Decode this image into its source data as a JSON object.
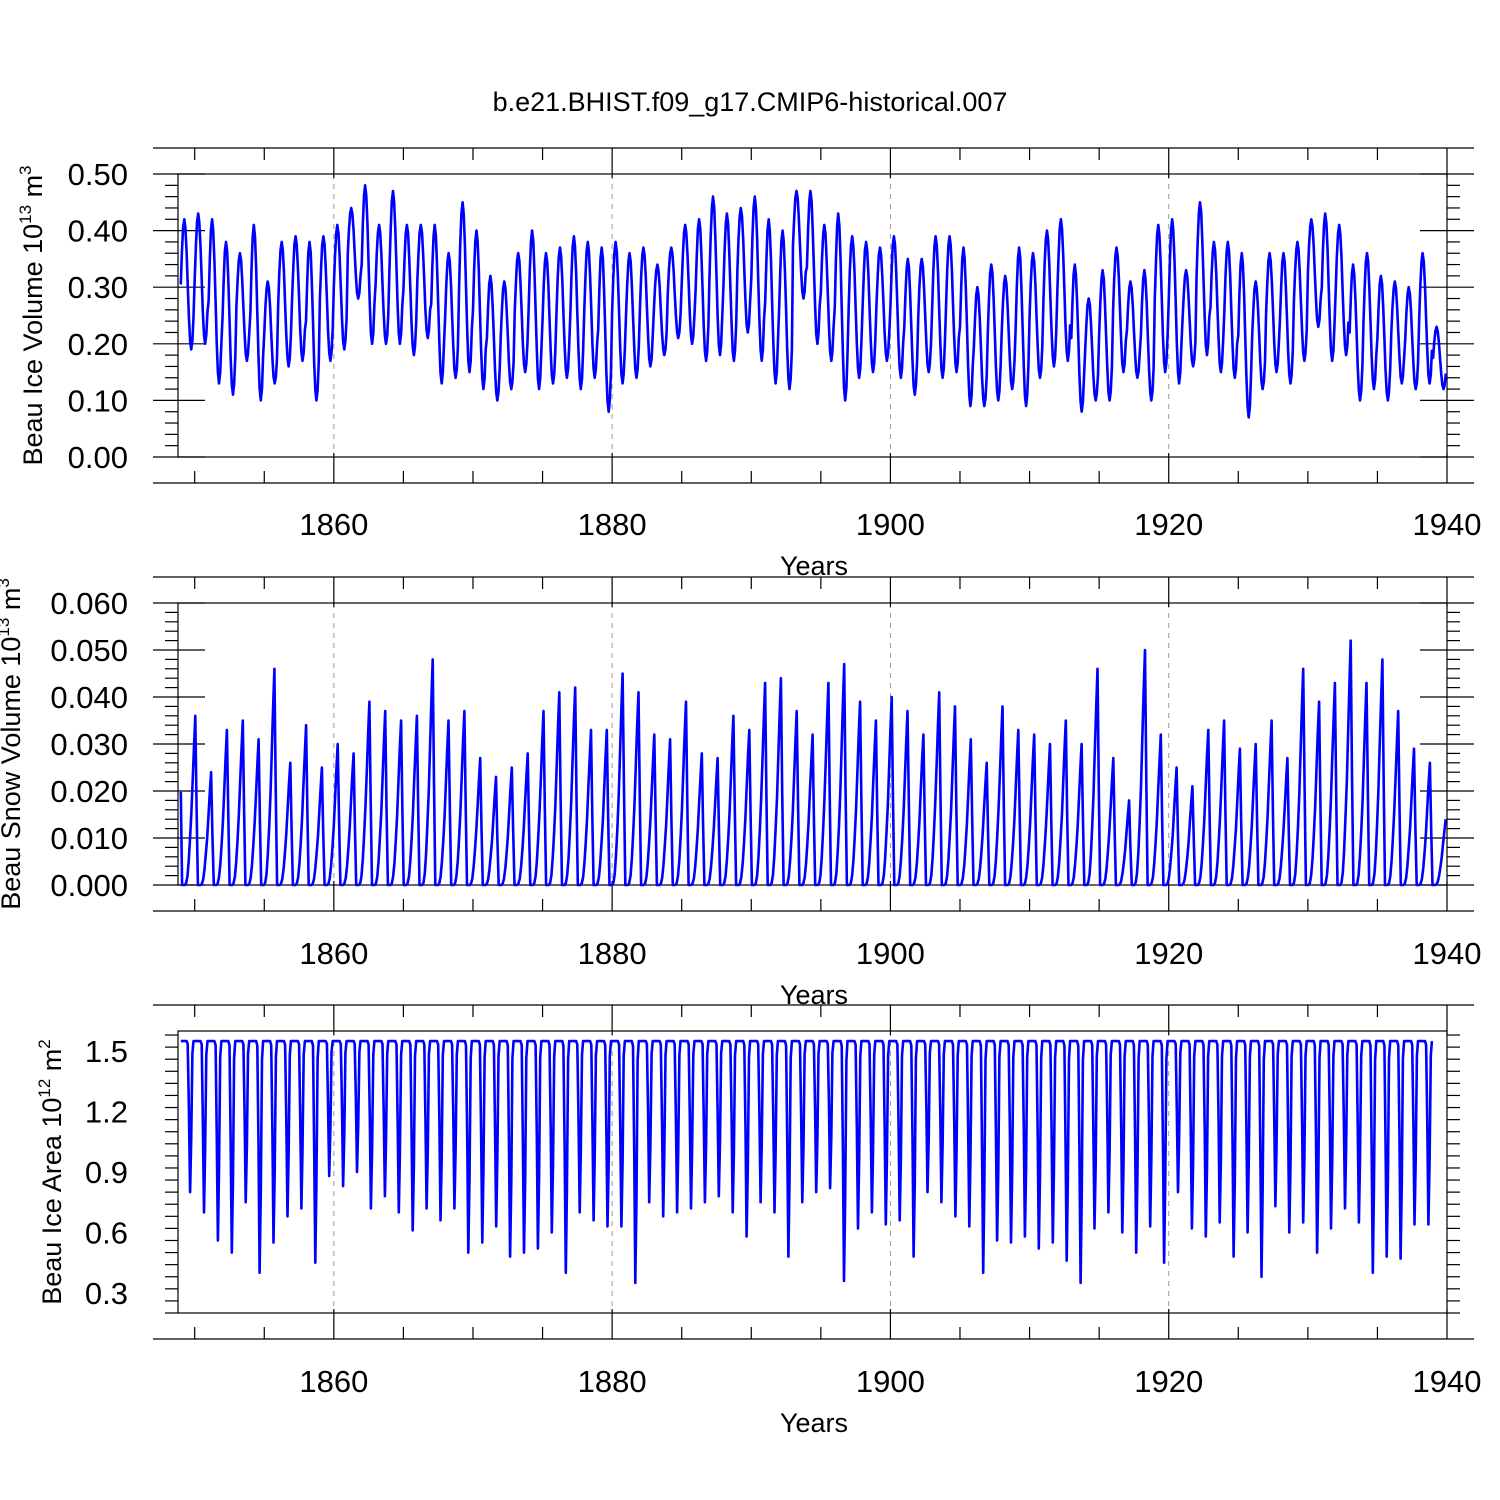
{
  "title": "b.e21.BHIST.f09_g17.CMIP6-historical.007",
  "colors": {
    "series": "#0000ff",
    "axis": "#000000",
    "grid": "#9a9a9a"
  },
  "chart_data": [
    {
      "id": "ice-volume",
      "type": "line",
      "ylabel": "Beau Ice Volume 10",
      "ylabel_sup": "13",
      "ylabel_unit": " m",
      "ylabel_unit_sup": "3",
      "xlabel": "Years",
      "xlim": [
        1848.8,
        1940
      ],
      "ylim": [
        0.0,
        0.5
      ],
      "xticks": [
        1860,
        1880,
        1900,
        1920,
        1940
      ],
      "yticks": [
        0.0,
        0.1,
        0.2,
        0.3,
        0.4,
        0.5
      ],
      "ytick_labels": [
        "0.00",
        "0.10",
        "0.20",
        "0.30",
        "0.40",
        "0.50"
      ],
      "grid_x": true,
      "series": [
        {
          "name": "ice volume",
          "max": [
            0.42,
            0.43,
            0.42,
            0.38,
            0.36,
            0.41,
            0.31,
            0.38,
            0.39,
            0.38,
            0.39,
            0.41,
            0.44,
            0.48,
            0.41,
            0.47,
            0.41,
            0.41,
            0.41,
            0.36,
            0.45,
            0.4,
            0.32,
            0.31,
            0.36,
            0.4,
            0.36,
            0.37,
            0.39,
            0.38,
            0.37,
            0.38,
            0.36,
            0.37,
            0.34,
            0.37,
            0.41,
            0.42,
            0.46,
            0.43,
            0.44,
            0.46,
            0.42,
            0.4,
            0.47,
            0.47,
            0.41,
            0.43,
            0.39,
            0.38,
            0.37,
            0.39,
            0.35,
            0.35,
            0.39,
            0.39,
            0.37,
            0.3,
            0.34,
            0.32,
            0.37,
            0.36,
            0.4,
            0.42,
            0.34,
            0.28,
            0.33,
            0.37,
            0.31,
            0.33,
            0.41,
            0.42,
            0.33,
            0.45,
            0.38,
            0.38,
            0.36,
            0.31,
            0.36,
            0.36,
            0.38,
            0.42,
            0.43,
            0.41,
            0.34,
            0.36,
            0.32,
            0.31,
            0.3,
            0.36,
            0.23
          ],
          "min": [
            0.19,
            0.2,
            0.13,
            0.11,
            0.17,
            0.1,
            0.13,
            0.16,
            0.17,
            0.1,
            0.17,
            0.19,
            0.28,
            0.2,
            0.2,
            0.2,
            0.18,
            0.21,
            0.13,
            0.14,
            0.15,
            0.12,
            0.1,
            0.12,
            0.15,
            0.12,
            0.13,
            0.14,
            0.12,
            0.14,
            0.08,
            0.13,
            0.14,
            0.16,
            0.18,
            0.21,
            0.2,
            0.17,
            0.18,
            0.17,
            0.22,
            0.17,
            0.13,
            0.12,
            0.28,
            0.2,
            0.17,
            0.1,
            0.14,
            0.15,
            0.17,
            0.14,
            0.11,
            0.15,
            0.14,
            0.15,
            0.09,
            0.09,
            0.1,
            0.12,
            0.09,
            0.14,
            0.16,
            0.17,
            0.08,
            0.1,
            0.1,
            0.15,
            0.14,
            0.1,
            0.15,
            0.13,
            0.16,
            0.18,
            0.15,
            0.14,
            0.07,
            0.12,
            0.15,
            0.13,
            0.17,
            0.23,
            0.17,
            0.18,
            0.1,
            0.12,
            0.1,
            0.13,
            0.12,
            0.13,
            0.12
          ]
        }
      ]
    },
    {
      "id": "snow-volume",
      "type": "line",
      "ylabel": "Beau Snow Volume 10",
      "ylabel_sup": "13",
      "ylabel_unit": " m",
      "ylabel_unit_sup": "3",
      "xlabel": "Years",
      "xlim": [
        1848.8,
        1940
      ],
      "ylim": [
        0.0,
        0.06
      ],
      "xticks": [
        1860,
        1880,
        1900,
        1920,
        1940
      ],
      "yticks": [
        0.0,
        0.01,
        0.02,
        0.03,
        0.04,
        0.05,
        0.06
      ],
      "ytick_labels": [
        "0.000",
        "0.010",
        "0.020",
        "0.030",
        "0.040",
        "0.050",
        "0.060"
      ],
      "grid_x": true,
      "series": [
        {
          "name": "snow volume",
          "peak": [
            0.036,
            0.024,
            0.033,
            0.035,
            0.031,
            0.046,
            0.026,
            0.034,
            0.025,
            0.03,
            0.028,
            0.039,
            0.037,
            0.035,
            0.036,
            0.048,
            0.035,
            0.037,
            0.027,
            0.023,
            0.025,
            0.028,
            0.037,
            0.041,
            0.042,
            0.033,
            0.033,
            0.045,
            0.041,
            0.032,
            0.031,
            0.039,
            0.028,
            0.027,
            0.036,
            0.033,
            0.043,
            0.044,
            0.037,
            0.032,
            0.043,
            0.047,
            0.039,
            0.035,
            0.04,
            0.037,
            0.032,
            0.041,
            0.038,
            0.031,
            0.026,
            0.038,
            0.033,
            0.032,
            0.03,
            0.035,
            0.03,
            0.046,
            0.027,
            0.018,
            0.05,
            0.032,
            0.025,
            0.021,
            0.033,
            0.035,
            0.029,
            0.03,
            0.035,
            0.027,
            0.046,
            0.039,
            0.043,
            0.052,
            0.043,
            0.048,
            0.037,
            0.029,
            0.026,
            0.014
          ]
        }
      ]
    },
    {
      "id": "ice-area",
      "type": "line",
      "ylabel": "Beau Ice Area 10",
      "ylabel_sup": "12",
      "ylabel_unit": " m",
      "ylabel_unit_sup": "2",
      "xlabel": "Years",
      "xlim": [
        1848.8,
        1940
      ],
      "ylim": [
        0.2,
        1.6
      ],
      "xticks": [
        1860,
        1880,
        1900,
        1920,
        1940
      ],
      "yticks": [
        0.3,
        0.6,
        0.9,
        1.2,
        1.5
      ],
      "ytick_labels": [
        "0.3",
        "0.6",
        "0.9",
        "1.2",
        "1.5"
      ],
      "grid_x": true,
      "series": [
        {
          "name": "ice area",
          "max": 1.55,
          "min": [
            0.8,
            0.7,
            0.56,
            0.5,
            0.75,
            0.4,
            0.55,
            0.68,
            0.72,
            0.45,
            0.88,
            0.83,
            0.9,
            0.72,
            0.78,
            0.7,
            0.61,
            0.72,
            0.66,
            0.72,
            0.5,
            0.55,
            0.63,
            0.48,
            0.5,
            0.52,
            0.6,
            0.4,
            0.7,
            0.66,
            0.63,
            0.63,
            0.35,
            0.75,
            0.68,
            0.7,
            0.72,
            0.75,
            0.78,
            0.7,
            0.58,
            0.75,
            0.7,
            0.48,
            0.75,
            0.8,
            0.82,
            0.36,
            0.62,
            0.7,
            0.64,
            0.66,
            0.48,
            0.8,
            0.75,
            0.68,
            0.63,
            0.4,
            0.56,
            0.55,
            0.58,
            0.52,
            0.55,
            0.46,
            0.35,
            0.62,
            0.7,
            0.6,
            0.5,
            0.63,
            0.45,
            0.8,
            0.62,
            0.58,
            0.65,
            0.48,
            0.6,
            0.38,
            0.73,
            0.6,
            0.65,
            0.5,
            0.62,
            0.72,
            0.65,
            0.4,
            0.48,
            0.47,
            0.64,
            0.64
          ]
        }
      ]
    }
  ]
}
